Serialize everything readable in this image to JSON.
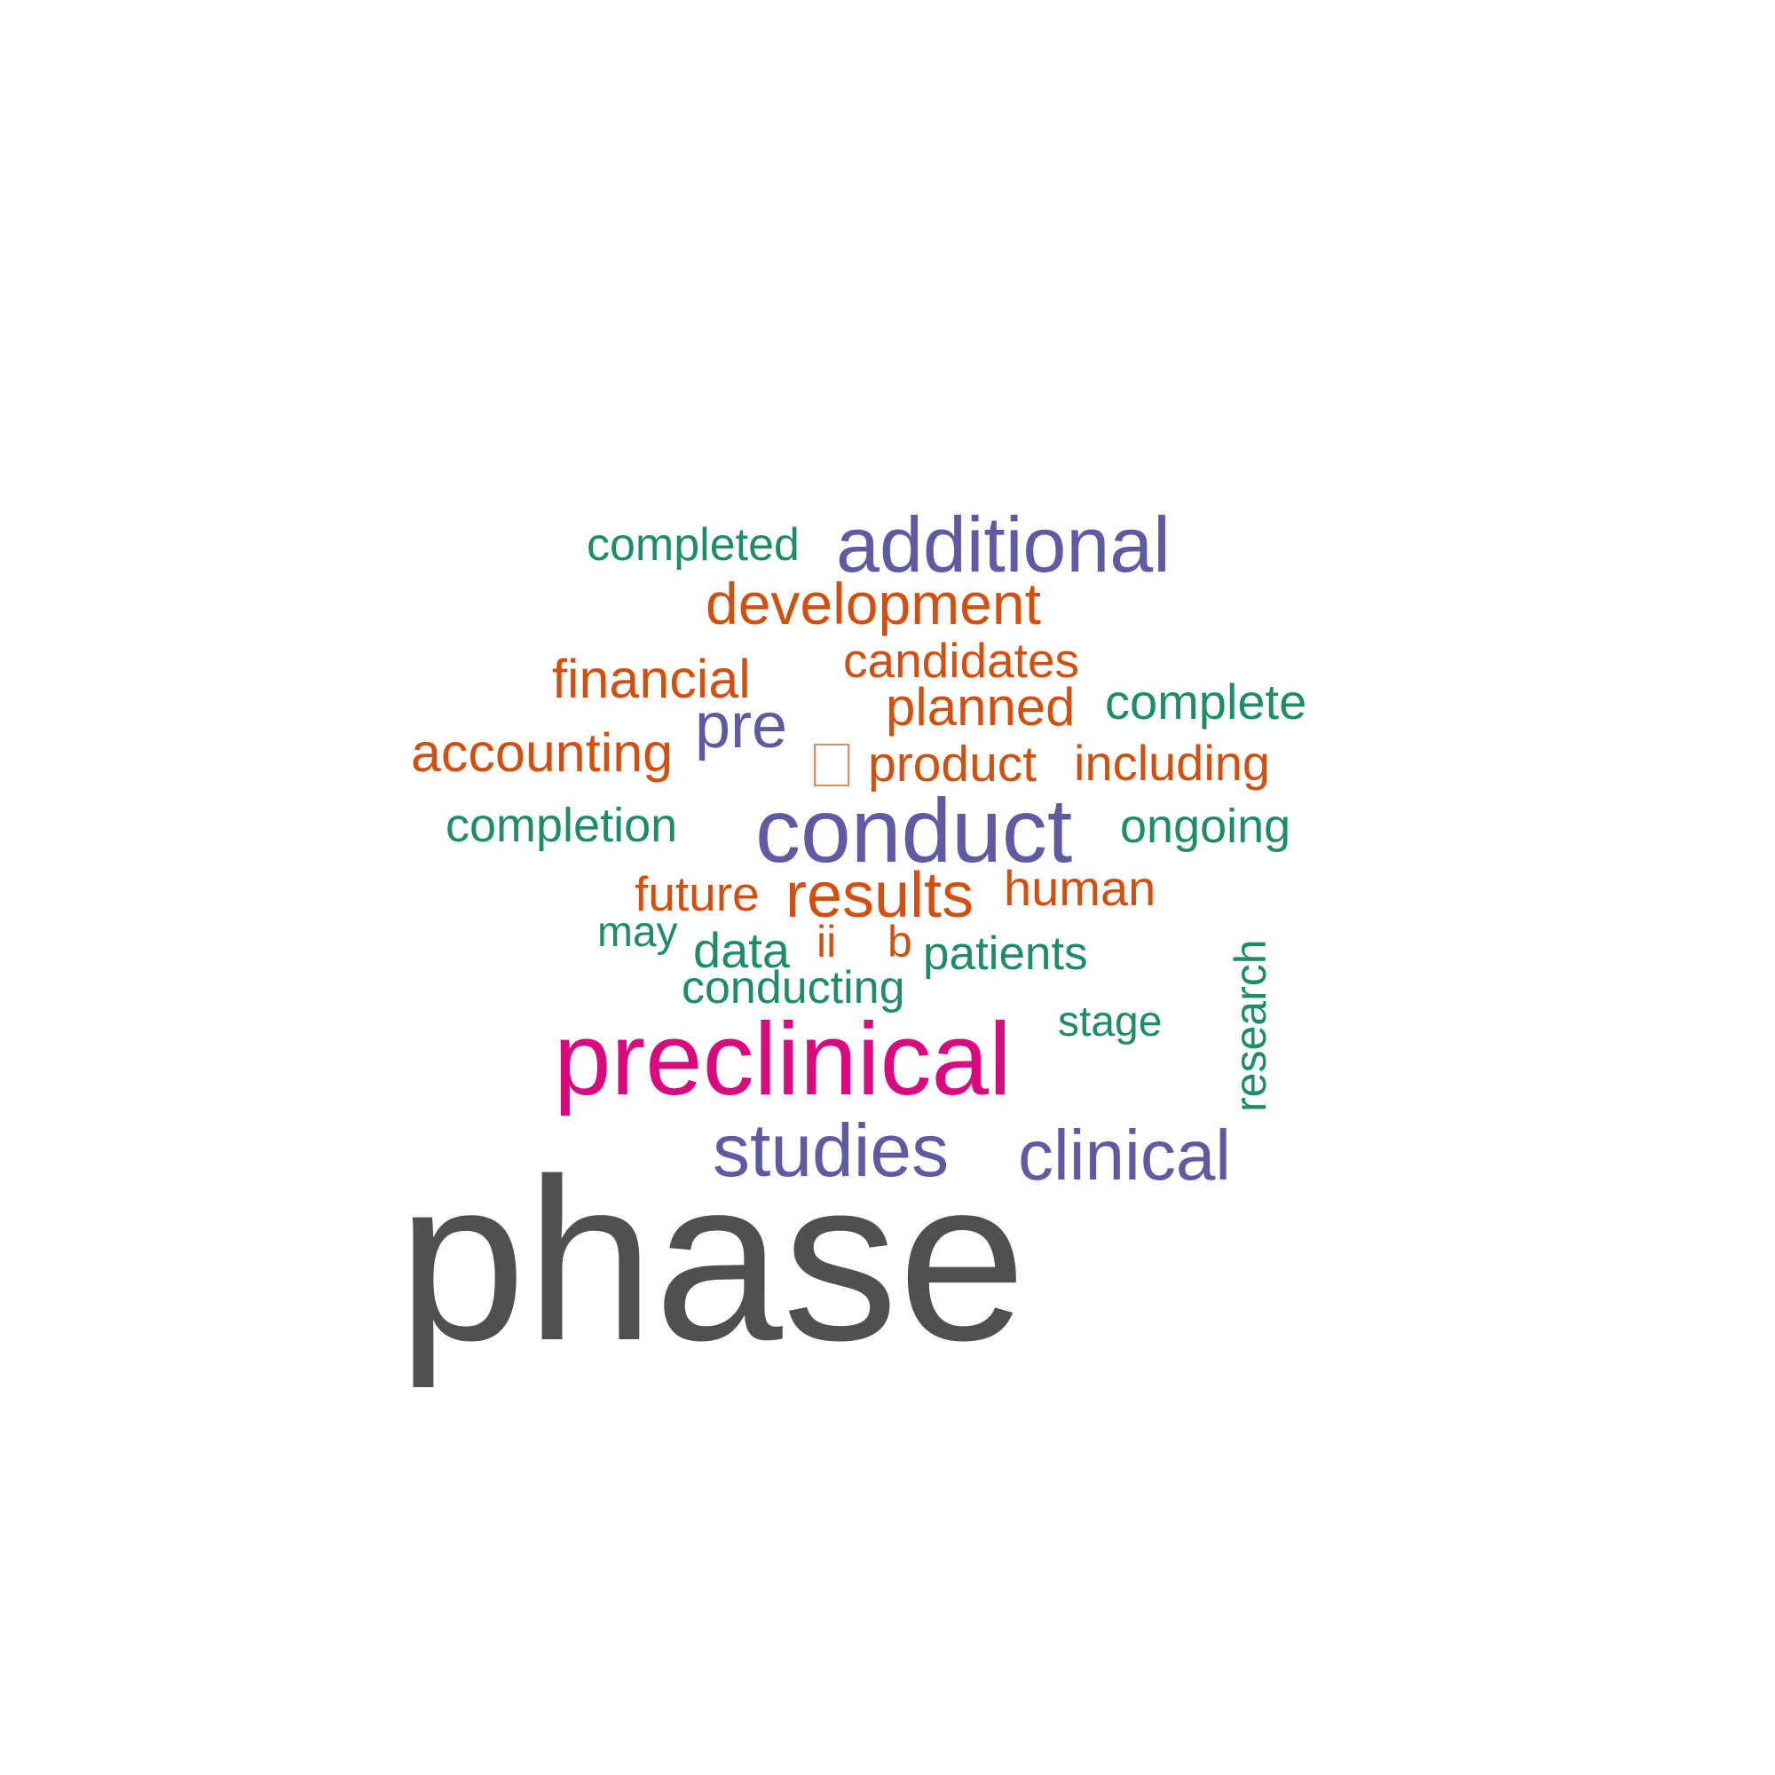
{
  "words": {
    "phase": "phase",
    "preclinical": "preclinical",
    "conduct": "conduct",
    "additional": "additional",
    "studies": "studies",
    "clinical": "clinical",
    "pre": "pre",
    "results": "results",
    "development": "development",
    "financial": "financial",
    "accounting": "accounting",
    "planned": "planned",
    "candidates": "candidates",
    "product": "product",
    "including": "including",
    "human": "human",
    "future": "future",
    "ii": "ii",
    "b": "b",
    "completed": "completed",
    "complete": "complete",
    "completion": "completion",
    "ongoing": "ongoing",
    "patients": "patients",
    "data": "data",
    "may": "may",
    "conducting": "conducting",
    "stage": "stage",
    "research": "research"
  },
  "colors": {
    "gray": "#505050",
    "pink": "#d9097f",
    "purple": "#5f5aa2",
    "orange": "#d2500f",
    "green": "#1e8c66"
  }
}
